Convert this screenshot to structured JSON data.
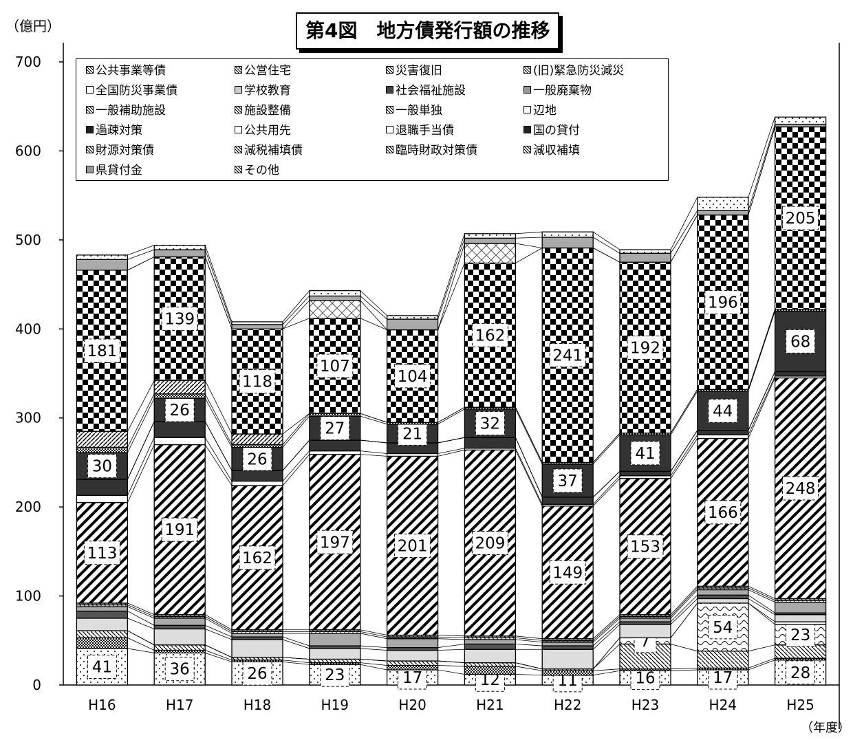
{
  "title": "第4図　地方債発行額の推移",
  "y_unit": "（億円）",
  "x_unit": "（年度）",
  "chart_data": {
    "type": "bar",
    "stacked": true,
    "categories": [
      "H16",
      "H17",
      "H18",
      "H19",
      "H20",
      "H21",
      "H22",
      "H23",
      "H24",
      "H25"
    ],
    "ylim": [
      0,
      700
    ],
    "yticks": [
      0,
      100,
      200,
      300,
      400,
      500,
      600,
      700
    ],
    "legend_placement": "top-left",
    "series": [
      {
        "name": "公共事業等債",
        "values": [
          41,
          36,
          26,
          23,
          17,
          12,
          11,
          16,
          17,
          28
        ],
        "labeled": true
      },
      {
        "name": "公営住宅",
        "values": [
          12,
          3,
          2,
          2,
          5,
          9,
          5,
          2,
          2,
          2
        ],
        "labeled": false
      },
      {
        "name": "災害復旧",
        "values": [
          8,
          6,
          3,
          4,
          5,
          4,
          2,
          28,
          19,
          15
        ],
        "labeled": false
      },
      {
        "name": "(旧)緊急防災減災",
        "values": [
          0,
          0,
          0,
          0,
          0,
          0,
          0,
          7,
          54,
          23
        ],
        "labeled": true
      },
      {
        "name": "全国防災事業債",
        "values": [
          0,
          0,
          0,
          0,
          0,
          0,
          0,
          0,
          0,
          3
        ],
        "labeled": false
      },
      {
        "name": "学校教育",
        "values": [
          14,
          18,
          20,
          12,
          12,
          15,
          22,
          15,
          5,
          8
        ],
        "labeled": false
      },
      {
        "name": "社会福祉施設",
        "values": [
          8,
          4,
          3,
          3,
          3,
          6,
          4,
          3,
          4,
          2
        ],
        "labeled": false
      },
      {
        "name": "一般廃棄物",
        "values": [
          5,
          8,
          4,
          14,
          10,
          5,
          4,
          4,
          6,
          12
        ],
        "labeled": false
      },
      {
        "name": "一般補助施設",
        "values": [
          2,
          2,
          2,
          2,
          2,
          2,
          2,
          2,
          2,
          2
        ],
        "labeled": false
      },
      {
        "name": "施設整備",
        "values": [
          2,
          2,
          2,
          2,
          2,
          2,
          2,
          2,
          2,
          2
        ],
        "labeled": false
      },
      {
        "name": "一般単独",
        "values": [
          113,
          191,
          162,
          197,
          201,
          209,
          149,
          153,
          166,
          248
        ],
        "labeled": true
      },
      {
        "name": "辺地",
        "values": [
          8,
          8,
          5,
          4,
          3,
          2,
          2,
          3,
          4,
          2
        ],
        "labeled": false
      },
      {
        "name": "過疎対策",
        "values": [
          18,
          18,
          12,
          12,
          12,
          12,
          8,
          5,
          5,
          5
        ],
        "labeled": false
      },
      {
        "name": "公共用先",
        "values": [
          0,
          0,
          0,
          0,
          0,
          0,
          0,
          0,
          0,
          0
        ],
        "labeled": false
      },
      {
        "name": "退職手当債",
        "values": [
          0,
          0,
          0,
          0,
          0,
          0,
          0,
          0,
          0,
          0
        ],
        "labeled": false
      },
      {
        "name": "国の貸付",
        "values": [
          30,
          26,
          26,
          27,
          21,
          32,
          37,
          41,
          44,
          68
        ],
        "labeled": true
      },
      {
        "name": "財源対策債",
        "values": [
          6,
          5,
          3,
          3,
          2,
          2,
          2,
          2,
          2,
          2
        ],
        "labeled": false
      },
      {
        "name": "減税補填債",
        "values": [
          18,
          15,
          12,
          0,
          0,
          0,
          0,
          0,
          0,
          0
        ],
        "labeled": false
      },
      {
        "name": "臨時財政対策債",
        "values": [
          181,
          139,
          118,
          107,
          104,
          162,
          241,
          192,
          196,
          205
        ],
        "labeled": true
      },
      {
        "name": "減収補填",
        "values": [
          0,
          0,
          0,
          20,
          0,
          22,
          0,
          0,
          0,
          0
        ],
        "labeled": false
      },
      {
        "name": "県貸付金",
        "values": [
          12,
          8,
          5,
          5,
          12,
          6,
          12,
          10,
          5,
          3
        ],
        "labeled": false
      },
      {
        "name": "その他",
        "values": [
          5,
          5,
          3,
          6,
          4,
          5,
          6,
          4,
          15,
          8
        ],
        "labeled": false
      }
    ]
  }
}
